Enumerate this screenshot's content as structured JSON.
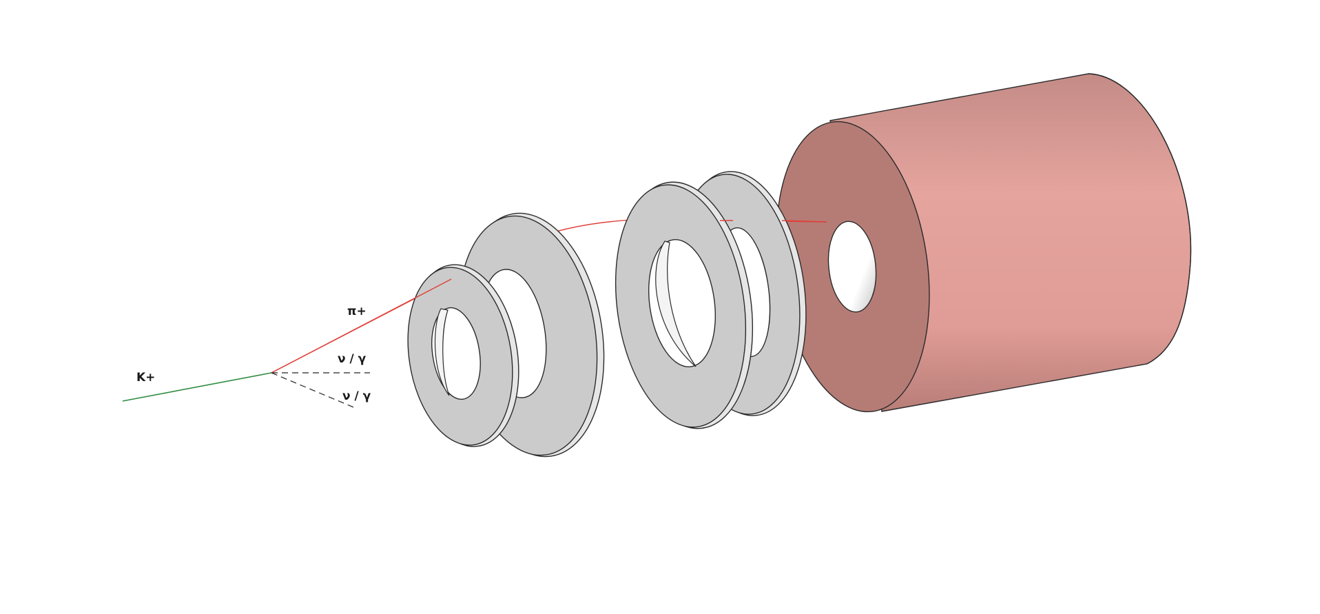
{
  "diagram": {
    "labels": {
      "kaon": "K+",
      "pion": "π+",
      "neutral_1": "ν / γ",
      "neutral_2": "ν / γ"
    },
    "colors": {
      "background": "#ffffff",
      "kaon_track": "#2e8b3e",
      "pion_track": "#e0403a",
      "neutral_track": "#222222",
      "detector_disk": "#cbcbcb",
      "calorimeter_front": "#b57c76",
      "calorimeter_side": "#e3a19b"
    }
  }
}
